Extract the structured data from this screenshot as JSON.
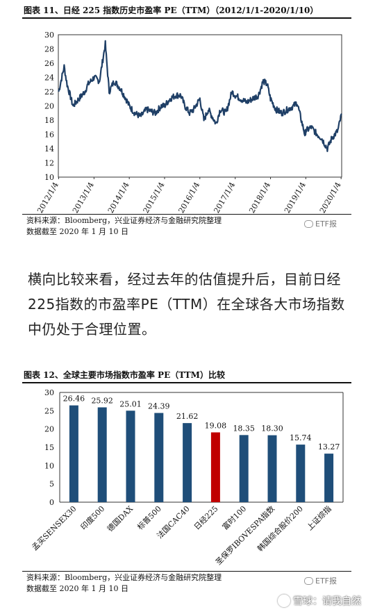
{
  "figure1": {
    "title": "图表 11、日经 225 指数历史市盈率 PE（TTM）（2012/1/1-2020/1/10）",
    "source": "资料来源：Bloomberg，兴业证券经济与金融研究院整理",
    "cutoff": "数据截至 2020 年 1 月 10 日"
  },
  "paragraph": "横向比较来看，经过去年的估值提升后，目前日经225指数的市盈率PE（TTM）在全球各大市场指数中仍处于合理位置。",
  "figure2": {
    "title": "图表 12、全球主要市场指数市盈率 PE（TTM）比较",
    "source": "资料来源：Bloomberg，兴业证券经济与金融研究院整理",
    "cutoff": "数据截至 2020 年 1 月 10 日"
  },
  "watermark": "ETF报",
  "footer": "雪球：请我自然",
  "chart_data": [
    {
      "type": "line",
      "title": "",
      "ylim": [
        10,
        30
      ],
      "yticks": [
        10,
        12,
        14,
        16,
        18,
        20,
        22,
        24,
        26,
        28,
        30
      ],
      "x_tick_labels": [
        "2012/1/4",
        "2013/1/4",
        "2014/1/4",
        "2015/1/4",
        "2016/1/4",
        "2017/1/4",
        "2018/1/4",
        "2019/1/4",
        "2020/1/4"
      ],
      "series_color": "#1f3f66",
      "series": [
        {
          "x": [
            "2012/1/4",
            "2012/3/1",
            "2012/4/1",
            "2012/6/1",
            "2012/8/1",
            "2012/10/1",
            "2012/11/1",
            "2013/1/4",
            "2013/3/1",
            "2013/5/1",
            "2013/6/10",
            "2013/8/1",
            "2013/10/1",
            "2013/12/1",
            "2014/1/4",
            "2014/3/1",
            "2014/5/1",
            "2014/7/1",
            "2014/10/1",
            "2014/12/1",
            "2015/1/4",
            "2015/3/1",
            "2015/5/1",
            "2015/6/20",
            "2015/8/1",
            "2015/9/20",
            "2015/11/1",
            "2016/1/4",
            "2016/2/15",
            "2016/4/1",
            "2016/6/20",
            "2016/8/1",
            "2016/10/1",
            "2016/12/1",
            "2017/1/4",
            "2017/3/1",
            "2017/5/1",
            "2017/7/1",
            "2017/9/1",
            "2017/10/20",
            "2017/12/1",
            "2018/1/4",
            "2018/3/1",
            "2018/5/1",
            "2018/7/1",
            "2018/9/1",
            "2018/10/5",
            "2018/12/25",
            "2019/1/4",
            "2019/3/1",
            "2019/5/1",
            "2019/6/15",
            "2019/8/15",
            "2019/10/1",
            "2019/12/1",
            "2020/1/10"
          ],
          "y": [
            22.0,
            25.5,
            23.0,
            20.0,
            21.0,
            22.0,
            23.0,
            24.0,
            23.5,
            28.7,
            22.0,
            23.5,
            22.5,
            21.0,
            20.0,
            19.0,
            18.5,
            19.5,
            19.0,
            20.0,
            20.0,
            21.0,
            21.5,
            21.5,
            20.0,
            19.0,
            19.5,
            21.0,
            18.0,
            19.5,
            17.5,
            19.5,
            19.0,
            22.0,
            21.5,
            21.0,
            20.5,
            21.0,
            21.5,
            23.5,
            23.0,
            21.0,
            19.5,
            19.0,
            19.5,
            20.0,
            20.5,
            16.0,
            16.5,
            17.0,
            16.0,
            15.5,
            14.0,
            15.5,
            16.5,
            18.9
          ]
        }
      ]
    },
    {
      "type": "bar",
      "title": "",
      "ylim": [
        0,
        30
      ],
      "yticks": [
        0,
        5,
        10,
        15,
        20,
        25,
        30
      ],
      "categories": [
        "孟买SENSEX30",
        "印度500",
        "德国DAX",
        "标普500",
        "法国CAC40",
        "日经225",
        "富时100",
        "圣保罗IBOVESPA指数",
        "韩国综合股价200",
        "上证综指"
      ],
      "values": [
        26.46,
        25.92,
        25.01,
        24.39,
        21.62,
        19.08,
        18.35,
        18.3,
        15.74,
        13.27
      ],
      "value_labels": [
        "26.46",
        "25.92",
        "25.01",
        "24.39",
        "21.62",
        "19.08",
        "18.35",
        "18.30",
        "15.74",
        "13.27"
      ],
      "bar_color": "#1f4e79",
      "highlight_color": "#c00000",
      "highlight_category": "日经225"
    }
  ]
}
